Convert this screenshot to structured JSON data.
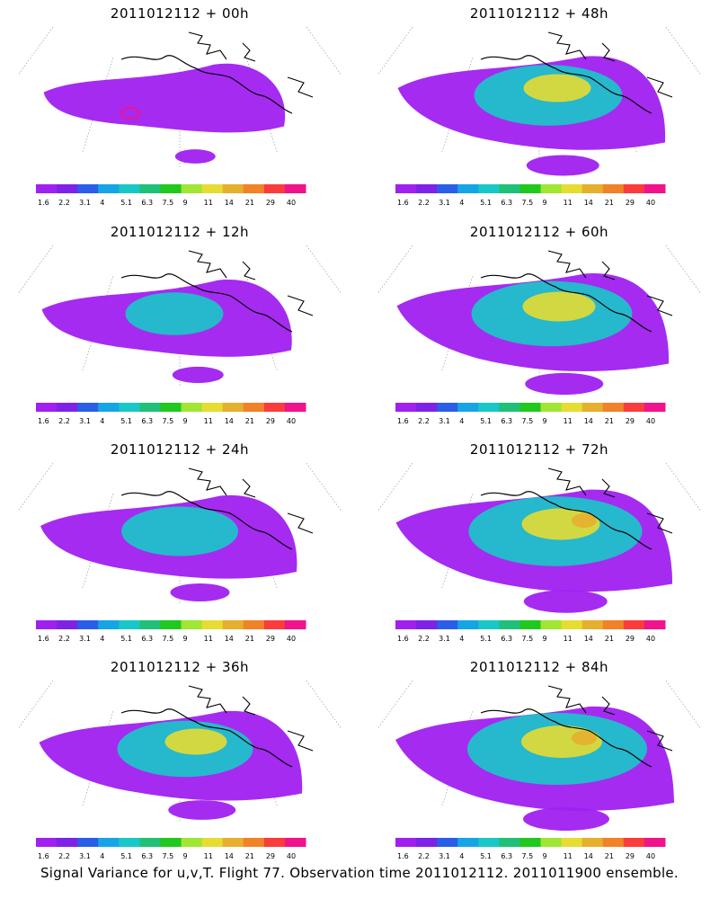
{
  "panels": [
    {
      "title": "2011012112 + 00h",
      "level": 0.15
    },
    {
      "title": "2011012112 + 48h",
      "level": 0.75
    },
    {
      "title": "2011012112 + 12h",
      "level": 0.35
    },
    {
      "title": "2011012112 + 60h",
      "level": 0.85
    },
    {
      "title": "2011012112 + 24h",
      "level": 0.5
    },
    {
      "title": "2011012112 + 72h",
      "level": 0.95
    },
    {
      "title": "2011012112 + 36h",
      "level": 0.65
    },
    {
      "title": "2011012112 + 84h",
      "level": 1.0
    }
  ],
  "colorbar": {
    "labels": [
      "1.6",
      "2.2",
      "3.1",
      "4",
      "5.1",
      "6.3",
      "7.5",
      "9",
      "11",
      "14",
      "21",
      "29",
      "40"
    ],
    "colors": [
      "#a020f0",
      "#7f22e8",
      "#2a5ee8",
      "#15a5e5",
      "#18c8c8",
      "#20c078",
      "#21c81e",
      "#a0e632",
      "#e6dc32",
      "#e6af2d",
      "#f08228",
      "#fa3c3c",
      "#f0138c"
    ]
  },
  "footer": "Signal Variance for u,v,T. Flight 77. Observation time 2011012112. 2011011900 ensemble.",
  "map_colors": {
    "coast": "#000000",
    "grid": "#9a9a9a"
  }
}
